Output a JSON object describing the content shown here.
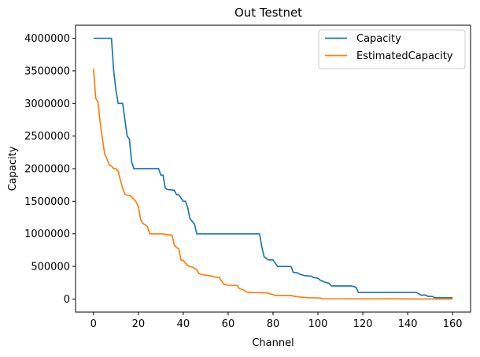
{
  "chart_data": {
    "type": "line",
    "title": "Out Testnet",
    "xlabel": "Channel",
    "ylabel": "Capacity",
    "xlim": [
      -8,
      168
    ],
    "ylim": [
      -200000,
      4200000
    ],
    "xticks": [
      0,
      20,
      40,
      60,
      80,
      100,
      120,
      140,
      160
    ],
    "xtick_labels": [
      "0",
      "20",
      "40",
      "60",
      "80",
      "100",
      "120",
      "140",
      "160"
    ],
    "yticks": [
      0,
      500000,
      1000000,
      1500000,
      2000000,
      2500000,
      3000000,
      3500000,
      4000000
    ],
    "ytick_labels": [
      "0",
      "500000",
      "1000000",
      "1500000",
      "2000000",
      "2500000",
      "3000000",
      "3500000",
      "4000000"
    ],
    "grid": false,
    "legend_position": "top-right",
    "series": [
      {
        "name": "Capacity",
        "color": "#1f77b4",
        "points": [
          [
            0,
            4000000
          ],
          [
            8,
            4000000
          ],
          [
            9,
            3500000
          ],
          [
            10,
            3200000
          ],
          [
            11,
            3000000
          ],
          [
            13,
            3000000
          ],
          [
            15,
            2500000
          ],
          [
            16,
            2450000
          ],
          [
            17,
            2100000
          ],
          [
            18,
            2000000
          ],
          [
            29,
            2000000
          ],
          [
            30,
            1900000
          ],
          [
            31,
            1900000
          ],
          [
            32,
            1700000
          ],
          [
            33,
            1680000
          ],
          [
            36,
            1670000
          ],
          [
            37,
            1600000
          ],
          [
            38,
            1600000
          ],
          [
            40,
            1500000
          ],
          [
            41,
            1500000
          ],
          [
            42,
            1400000
          ],
          [
            43,
            1230000
          ],
          [
            45,
            1150000
          ],
          [
            46,
            1000000
          ],
          [
            74,
            1000000
          ],
          [
            75,
            800000
          ],
          [
            76,
            650000
          ],
          [
            77,
            620000
          ],
          [
            78,
            600000
          ],
          [
            80,
            600000
          ],
          [
            81,
            550000
          ],
          [
            82,
            500000
          ],
          [
            88,
            500000
          ],
          [
            89,
            410000
          ],
          [
            91,
            400000
          ],
          [
            92,
            380000
          ],
          [
            94,
            360000
          ],
          [
            97,
            350000
          ],
          [
            98,
            330000
          ],
          [
            100,
            320000
          ],
          [
            101,
            290000
          ],
          [
            103,
            260000
          ],
          [
            105,
            240000
          ],
          [
            106,
            200000
          ],
          [
            115,
            200000
          ],
          [
            117,
            180000
          ],
          [
            118,
            100000
          ],
          [
            144,
            100000
          ],
          [
            145,
            80000
          ],
          [
            146,
            60000
          ],
          [
            148,
            60000
          ],
          [
            149,
            40000
          ],
          [
            151,
            40000
          ],
          [
            152,
            20000
          ],
          [
            160,
            20000
          ]
        ]
      },
      {
        "name": "EstimatedCapacity",
        "color": "#ff7f0e",
        "points": [
          [
            0,
            3530000
          ],
          [
            1,
            3080000
          ],
          [
            2,
            3020000
          ],
          [
            3,
            2700000
          ],
          [
            4,
            2450000
          ],
          [
            5,
            2220000
          ],
          [
            6,
            2150000
          ],
          [
            7,
            2060000
          ],
          [
            8,
            2040000
          ],
          [
            9,
            2000000
          ],
          [
            10,
            2000000
          ],
          [
            11,
            1960000
          ],
          [
            12,
            1820000
          ],
          [
            13,
            1700000
          ],
          [
            14,
            1610000
          ],
          [
            15,
            1590000
          ],
          [
            16,
            1590000
          ],
          [
            17,
            1570000
          ],
          [
            18,
            1530000
          ],
          [
            19,
            1490000
          ],
          [
            20,
            1420000
          ],
          [
            21,
            1220000
          ],
          [
            22,
            1160000
          ],
          [
            23,
            1140000
          ],
          [
            24,
            1110000
          ],
          [
            25,
            1000000
          ],
          [
            27,
            1000000
          ],
          [
            31,
            1000000
          ],
          [
            32,
            990000
          ],
          [
            35,
            980000
          ],
          [
            36,
            830000
          ],
          [
            37,
            790000
          ],
          [
            38,
            770000
          ],
          [
            39,
            600000
          ],
          [
            40,
            590000
          ],
          [
            41,
            550000
          ],
          [
            42,
            510000
          ],
          [
            44,
            490000
          ],
          [
            46,
            450000
          ],
          [
            47,
            390000
          ],
          [
            49,
            370000
          ],
          [
            53,
            350000
          ],
          [
            54,
            340000
          ],
          [
            56,
            330000
          ],
          [
            57,
            280000
          ],
          [
            58,
            230000
          ],
          [
            60,
            210000
          ],
          [
            64,
            210000
          ],
          [
            65,
            160000
          ],
          [
            67,
            140000
          ],
          [
            68,
            110000
          ],
          [
            70,
            100000
          ],
          [
            77,
            95000
          ],
          [
            79,
            75000
          ],
          [
            80,
            70000
          ],
          [
            81,
            55000
          ],
          [
            88,
            55000
          ],
          [
            89,
            45000
          ],
          [
            90,
            40000
          ],
          [
            92,
            30000
          ],
          [
            96,
            20000
          ],
          [
            101,
            15000
          ],
          [
            102,
            5000
          ],
          [
            160,
            0
          ]
        ]
      }
    ]
  }
}
